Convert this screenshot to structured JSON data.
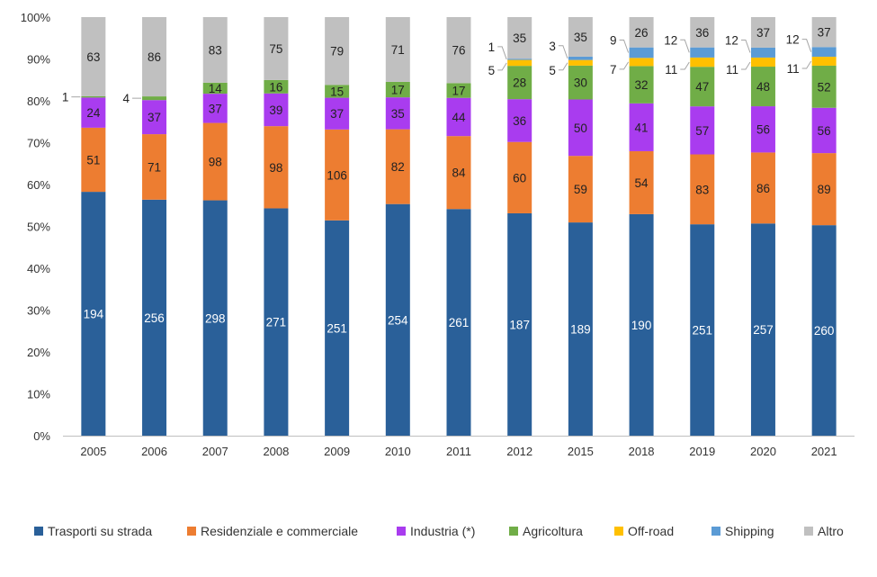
{
  "chart_data": {
    "type": "bar",
    "stacked": "percent",
    "categories": [
      "2005",
      "2006",
      "2007",
      "2008",
      "2009",
      "2010",
      "2011",
      "2012",
      "2015",
      "2018",
      "2019",
      "2020",
      "2021"
    ],
    "series": [
      {
        "name": "Trasporti su strada",
        "color": "#2a6099",
        "values": [
          194,
          256,
          298,
          271,
          251,
          254,
          261,
          187,
          189,
          190,
          251,
          257,
          260
        ]
      },
      {
        "name": "Residenziale e commerciale",
        "color": "#ed7d31",
        "values": [
          51,
          71,
          98,
          98,
          106,
          82,
          84,
          60,
          59,
          54,
          83,
          86,
          89
        ]
      },
      {
        "name": "Industria (*)",
        "color": "#a93cef",
        "values": [
          24,
          37,
          37,
          39,
          37,
          35,
          44,
          36,
          50,
          41,
          57,
          56,
          56
        ]
      },
      {
        "name": "Agricoltura",
        "color": "#70ad47",
        "values": [
          1,
          4,
          14,
          16,
          15,
          17,
          17,
          28,
          30,
          32,
          47,
          48,
          52
        ]
      },
      {
        "name": "Off-road",
        "color": "#ffc000",
        "values": [
          null,
          null,
          null,
          null,
          null,
          null,
          null,
          5,
          5,
          7,
          11,
          11,
          11
        ]
      },
      {
        "name": "Shipping",
        "color": "#5b9bd5",
        "values": [
          null,
          null,
          null,
          null,
          null,
          null,
          null,
          1,
          3,
          9,
          12,
          12,
          12
        ]
      },
      {
        "name": "Altro",
        "color": "#c0c0c0",
        "values": [
          63,
          86,
          83,
          75,
          79,
          71,
          76,
          35,
          35,
          26,
          36,
          37,
          37
        ]
      }
    ],
    "y_tick_labels": [
      "0%",
      "10%",
      "20%",
      "30%",
      "40%",
      "50%",
      "60%",
      "70%",
      "80%",
      "90%",
      "100%"
    ],
    "ylim": [
      0,
      100
    ],
    "legend_position": "bottom",
    "grid": false
  }
}
